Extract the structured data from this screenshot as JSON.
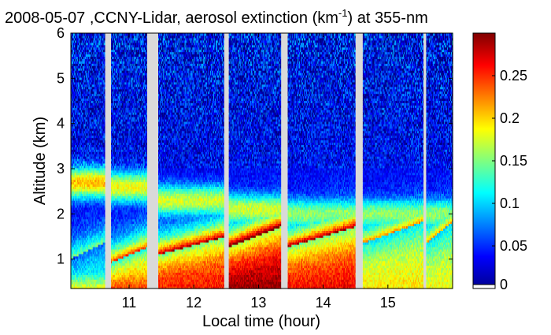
{
  "chart_data": {
    "type": "heatmap",
    "title": {
      "main": "2008-05-07 ,CCNY-Lidar, aerosol extinction (km",
      "superscript": "-1",
      "suffix": ") at 355-nm"
    },
    "xlabel": "Local time (hour)",
    "ylabel": "Altitude (km)",
    "xlim": [
      10.1,
      16.0
    ],
    "ylim": [
      0.35,
      6.0
    ],
    "x_ticks": [
      "11",
      "12",
      "13",
      "14",
      "15"
    ],
    "x_tick_values": [
      11,
      12,
      13,
      14,
      15
    ],
    "y_ticks": [
      "1",
      "2",
      "3",
      "4",
      "5",
      "6"
    ],
    "y_tick_values": [
      1,
      2,
      3,
      4,
      5,
      6
    ],
    "colorbar": {
      "ticks": [
        "0",
        "0.05",
        "0.1",
        "0.15",
        "0.2",
        "0.25"
      ],
      "tick_values": [
        0,
        0.05,
        0.1,
        0.15,
        0.2,
        0.25
      ],
      "range": [
        0,
        0.3
      ],
      "colormap": "jet"
    },
    "data_gaps_hour": [
      [
        10.63,
        10.72
      ],
      [
        11.28,
        11.45
      ],
      [
        12.47,
        12.54
      ],
      [
        13.35,
        13.45
      ],
      [
        14.5,
        14.61
      ],
      [
        15.55,
        15.59
      ]
    ],
    "layers": [
      {
        "t_start": 10.1,
        "t_end": 10.63,
        "surface_value": 0.25,
        "boundary_layer_top_km": 1.2,
        "residual_layer_km": 2.7,
        "residual_value": 0.17,
        "boundary_value": 0.12
      },
      {
        "t_start": 10.72,
        "t_end": 11.28,
        "surface_value": 0.27,
        "boundary_layer_top_km": 1.1,
        "residual_layer_km": 2.6,
        "residual_value": 0.15,
        "boundary_value": 0.22
      },
      {
        "t_start": 11.45,
        "t_end": 12.47,
        "surface_value": 0.25,
        "boundary_layer_top_km": 1.3,
        "residual_layer_km": 2.3,
        "residual_value": 0.14,
        "boundary_value": 0.26
      },
      {
        "t_start": 12.54,
        "t_end": 13.35,
        "surface_value": 0.3,
        "boundary_layer_top_km": 1.5,
        "residual_layer_km": 2.1,
        "residual_value": 0.14,
        "boundary_value": 0.29
      },
      {
        "t_start": 13.45,
        "t_end": 14.5,
        "surface_value": 0.27,
        "boundary_layer_top_km": 1.5,
        "residual_layer_km": 2.0,
        "residual_value": 0.12,
        "boundary_value": 0.26
      },
      {
        "t_start": 14.61,
        "t_end": 15.55,
        "surface_value": 0.2,
        "boundary_layer_top_km": 1.6,
        "residual_layer_km": 2.0,
        "residual_value": 0.12,
        "boundary_value": 0.19
      },
      {
        "t_start": 15.59,
        "t_end": 16.0,
        "surface_value": 0.19,
        "boundary_layer_top_km": 1.6,
        "residual_layer_km": 2.0,
        "residual_value": 0.12,
        "boundary_value": 0.18
      }
    ],
    "free_troposphere_value": 0.035,
    "colors": {
      "gap": "#d9d9d9",
      "background": "#ffffff"
    }
  }
}
